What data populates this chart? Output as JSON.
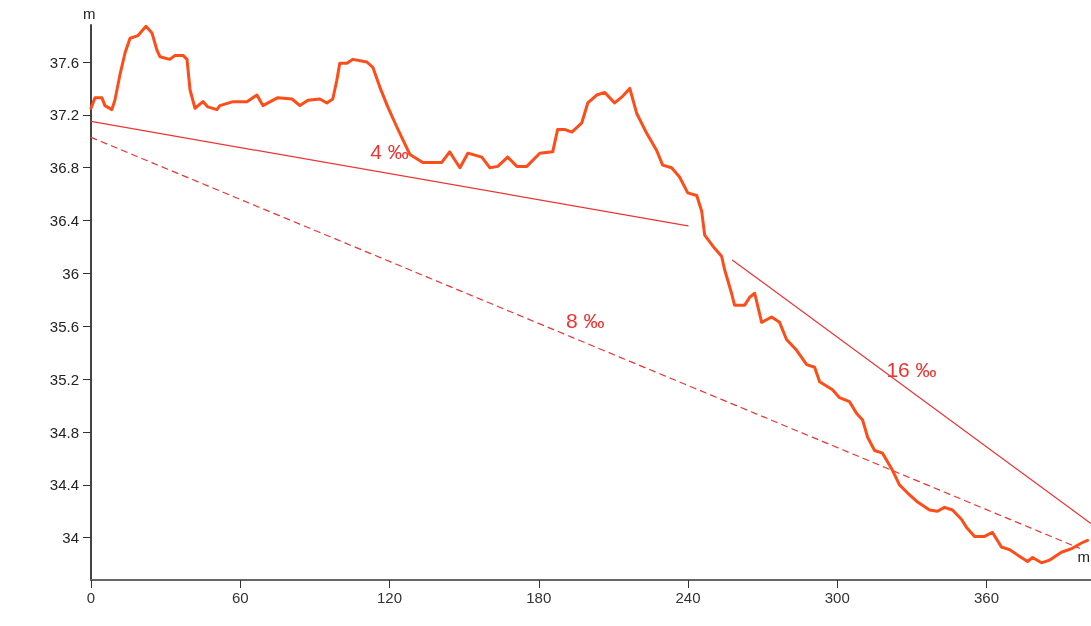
{
  "chart_data": {
    "type": "line",
    "xlabel": "m",
    "ylabel": "m",
    "xlim": [
      0,
      402
    ],
    "ylim": [
      33.68,
      37.88
    ],
    "xticks": [
      0,
      60,
      120,
      180,
      240,
      300,
      360
    ],
    "yticks": [
      34,
      34.4,
      34.8,
      35.2,
      35.6,
      36,
      36.4,
      36.8,
      37.2,
      37.6
    ],
    "grid": false,
    "marker": "none",
    "series": [
      {
        "color": "#ff4d1a",
        "line_style": "solid",
        "x": [
          0,
          1.6,
          4.4,
          5.6,
          8.4,
          9.6,
          11.6,
          13.7,
          15.7,
          18.9,
          22.1,
          24.5,
          26.5,
          27.7,
          31.7,
          33.8,
          37.0,
          38.6,
          39.8,
          41.8,
          45.0,
          47.0,
          50.6,
          51.8,
          57.1,
          62.7,
          66.7,
          69.1,
          75.1,
          80.8,
          84.0,
          87.2,
          92.0,
          94.8,
          97.2,
          98.8,
          100.0,
          102.9,
          105.3,
          110.9,
          113.3,
          116.1,
          119.3,
          122.9,
          125.4,
          128.2,
          133.4,
          141.0,
          144.2,
          146.2,
          148.3,
          151.5,
          157.1,
          160.3,
          163.5,
          167.5,
          171.2,
          175.2,
          180.4,
          185.6,
          187.6,
          190.4,
          193.3,
          197.3,
          199.7,
          203.3,
          206.5,
          210.5,
          213.7,
          216.6,
          219.4,
          223.4,
          227.4,
          229.8,
          233.4,
          236.6,
          239.9,
          243.5,
          245.5,
          246.7,
          250.7,
          253.5,
          254.7,
          257.5,
          258.7,
          262.8,
          264.8,
          266.8,
          269.6,
          273.6,
          276.8,
          279.6,
          283.6,
          287.7,
          290.9,
          292.9,
          298.1,
          300.9,
          304.9,
          307.8,
          310.2,
          312.2,
          315.0,
          318.2,
          322.2,
          325.0,
          328.2,
          332.3,
          337.1,
          340.3,
          343.1,
          346.3,
          349.9,
          351.9,
          355.2,
          359.2,
          362.4,
          366.0,
          369.2,
          373.2,
          376.5,
          378.5,
          382.1,
          385.3,
          390.1,
          394.5,
          398.2,
          400.6
        ],
        "values": [
          37.25,
          37.33,
          37.33,
          37.27,
          37.24,
          37.31,
          37.5,
          37.67,
          37.78,
          37.8,
          37.87,
          37.82,
          37.69,
          37.64,
          37.62,
          37.65,
          37.65,
          37.62,
          37.39,
          37.25,
          37.3,
          37.26,
          37.24,
          37.27,
          37.3,
          37.3,
          37.35,
          37.27,
          37.33,
          37.32,
          37.27,
          37.31,
          37.32,
          37.29,
          37.32,
          37.46,
          37.59,
          37.59,
          37.62,
          37.6,
          37.56,
          37.41,
          37.26,
          37.11,
          37.01,
          36.9,
          36.84,
          36.84,
          36.92,
          36.86,
          36.8,
          36.91,
          36.88,
          36.8,
          36.81,
          36.88,
          36.81,
          36.81,
          36.91,
          36.92,
          37.09,
          37.09,
          37.07,
          37.14,
          37.29,
          37.35,
          37.37,
          37.29,
          37.34,
          37.4,
          37.21,
          37.06,
          36.93,
          36.82,
          36.8,
          36.73,
          36.61,
          36.59,
          36.47,
          36.29,
          36.19,
          36.13,
          36.03,
          35.85,
          35.76,
          35.76,
          35.82,
          35.85,
          35.63,
          35.67,
          35.63,
          35.5,
          35.42,
          35.31,
          35.29,
          35.18,
          35.12,
          35.06,
          35.03,
          34.94,
          34.89,
          34.76,
          34.66,
          34.64,
          34.51,
          34.4,
          34.34,
          34.27,
          34.21,
          34.2,
          34.23,
          34.21,
          34.14,
          34.08,
          34.01,
          34.01,
          34.04,
          33.93,
          33.91,
          33.86,
          33.82,
          33.85,
          33.81,
          33.83,
          33.89,
          33.92,
          33.96,
          33.98
        ]
      },
      {
        "name": "4 ‰",
        "color": "#ee3333",
        "line_style": "solid",
        "x": [
          0,
          240
        ],
        "values": [
          37.15,
          36.36
        ]
      },
      {
        "name": "8 ‰",
        "color": "#ee3333",
        "line_style": "dashed",
        "x": [
          0,
          397.4
        ],
        "values": [
          37.03,
          33.92
        ]
      },
      {
        "name": "16 ‰",
        "color": "#ee3333",
        "line_style": "solid",
        "x": [
          257.9,
          401.8
        ],
        "values": [
          36.1,
          34.11
        ]
      }
    ]
  }
}
